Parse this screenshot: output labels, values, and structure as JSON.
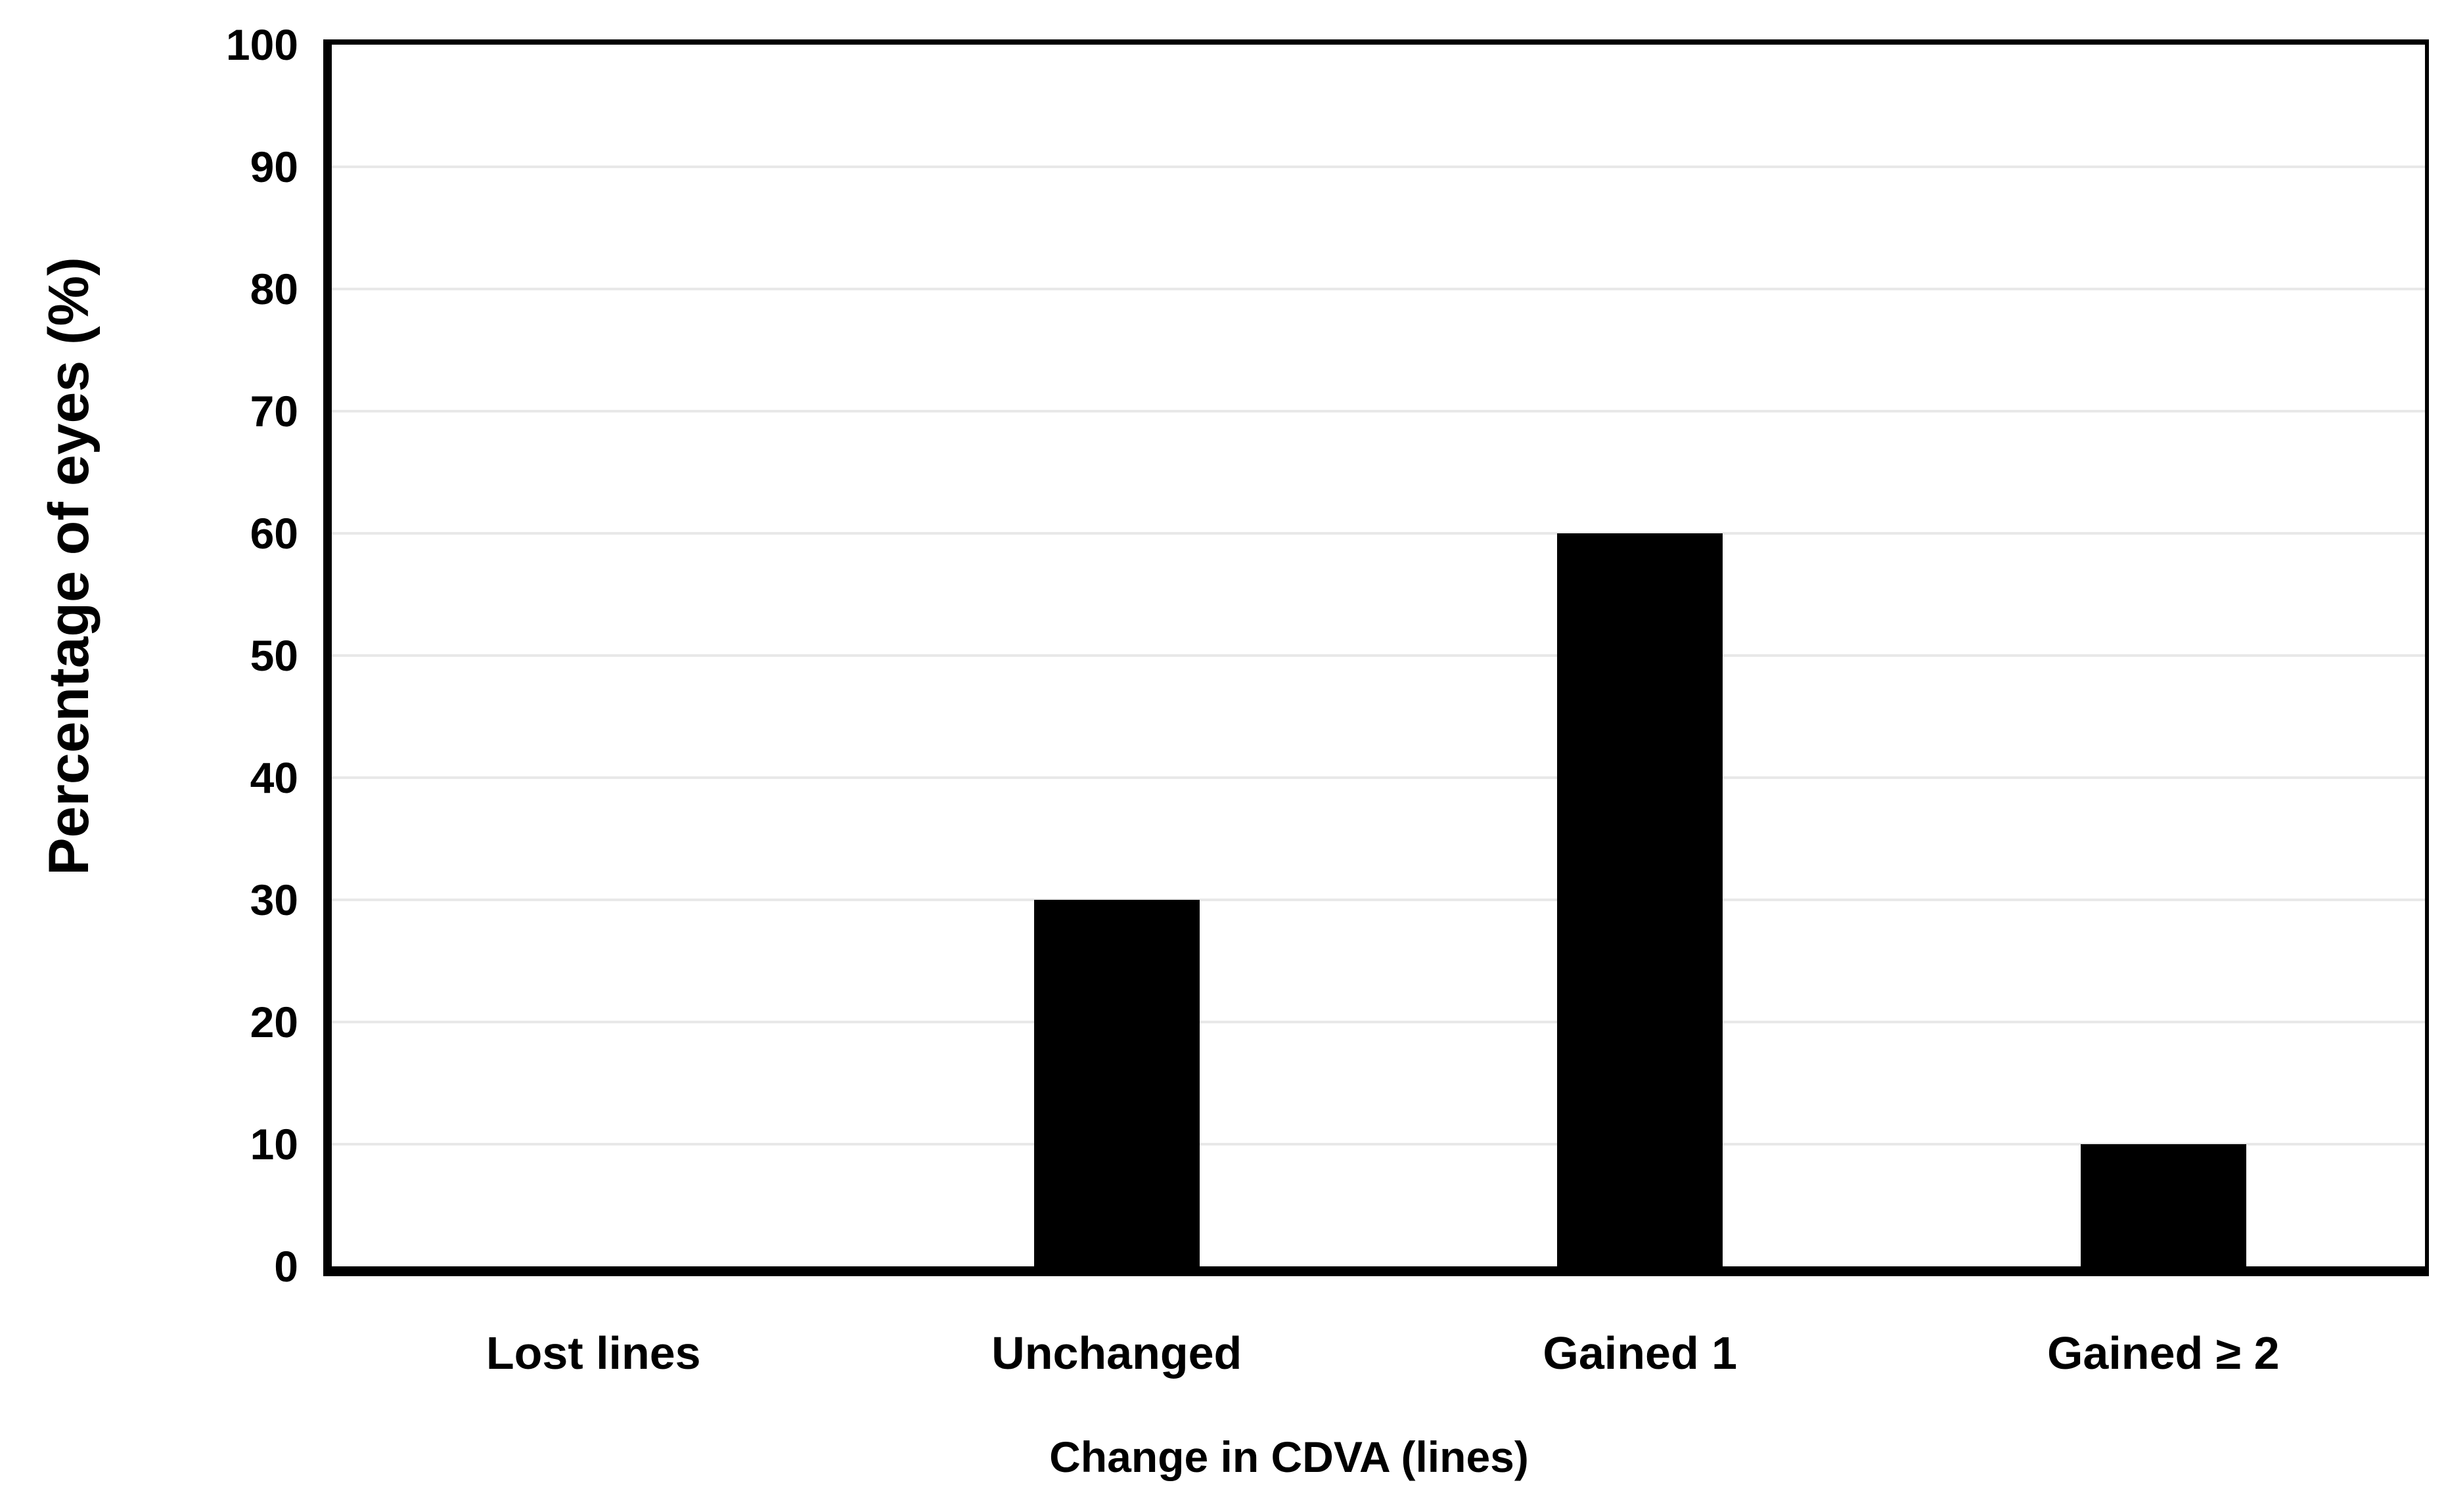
{
  "figure": {
    "background_color": "#ffffff",
    "text_color": "#000000"
  },
  "chart_data": {
    "type": "bar",
    "title": "",
    "categories": [
      "Lost lines",
      "Unchanged",
      "Gained 1",
      "Gained ≥ 2"
    ],
    "values": [
      0,
      30,
      60,
      10
    ],
    "xlabel": "Change in CDVA (lines)",
    "ylabel": "Percentage of eyes (%)",
    "ylim": [
      0,
      100
    ],
    "yticks": [
      0,
      10,
      20,
      30,
      40,
      50,
      60,
      70,
      80,
      90,
      100
    ],
    "grid": "horizontal",
    "legend": "none",
    "bar_color": "#000000",
    "gridline_color": "#e8e8e8",
    "axis_color": "#000000"
  }
}
